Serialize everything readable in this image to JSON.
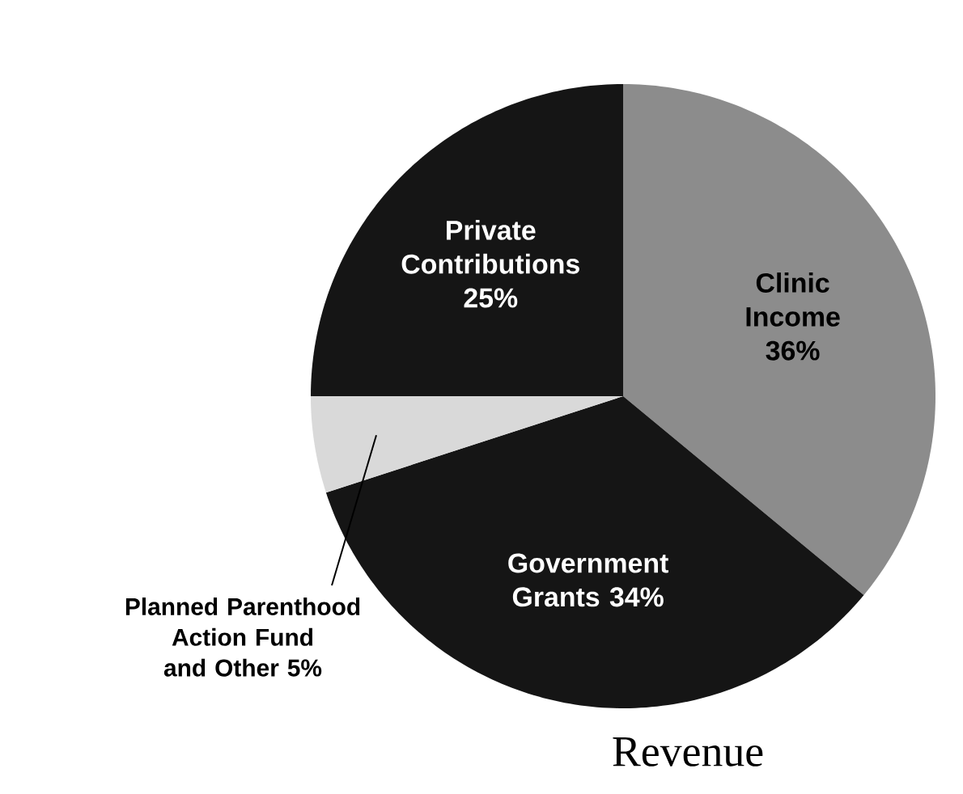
{
  "chart_data": {
    "type": "pie",
    "title": "Revenue",
    "categories": [
      "Clinic Income",
      "Government Grants",
      "Planned Parenthood Action Fund and Other",
      "Private Contributions"
    ],
    "values": [
      36,
      34,
      5,
      25
    ],
    "value_labels": [
      "36%",
      "34%",
      "5%",
      "25%"
    ],
    "colors": [
      "#8c8c8c",
      "#151515",
      "#d9d9d9",
      "#151515"
    ]
  }
}
